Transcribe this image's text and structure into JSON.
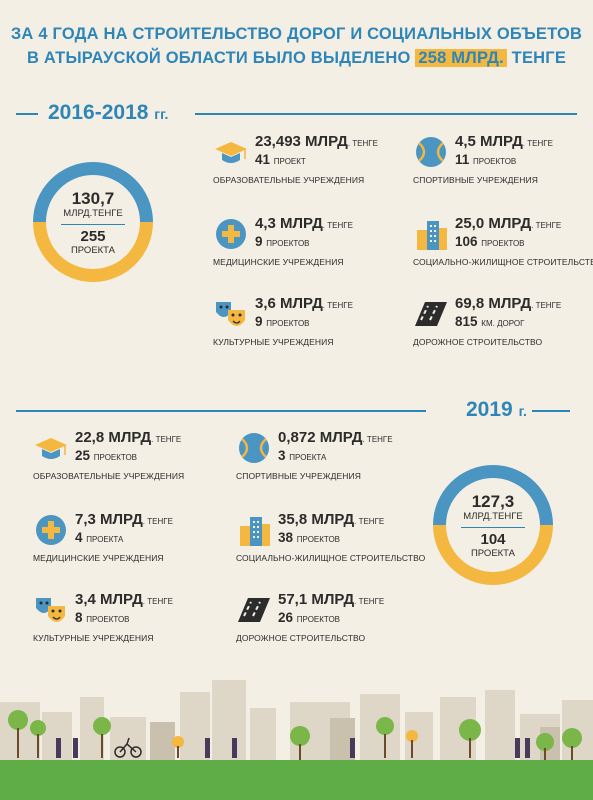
{
  "header": {
    "line1": "ЗА 4 ГОДА НА СТРОИТЕЛЬСТВО ДОРОГ И СОЦИАЛЬНЫХ ОБЪЕТОВ",
    "line2_prefix": "В АТЫРАУСКОЙ ОБЛАСТИ БЫЛО ВЫДЕЛЕНО",
    "line2_highlight": "258 МЛРД.",
    "line2_suffix": "ТЕНГЕ"
  },
  "period1": {
    "label": "2016-2018",
    "suffix": "гг.",
    "total_value": "130,7",
    "total_unit": "МЛРД.ТЕНГЕ",
    "total_count": "255",
    "total_count_label": "ПРОЕКТА",
    "items": [
      {
        "amount": "23,493 МЛРД",
        "unit": ". ТЕНГЕ",
        "count": "41",
        "count_unit": "ПРОЕКТ",
        "caption": "ОБРАЗОВАТЕЛЬНЫЕ УЧРЕЖДЕНИЯ",
        "icon": "graduation-cap-icon"
      },
      {
        "amount": "4,5 МЛРД",
        "unit": ". ТЕНГЕ",
        "count": "11",
        "count_unit": "ПРОЕКТОВ",
        "caption": "СПОРТИВНЫЕ УЧРЕЖДЕНИЯ",
        "icon": "tennis-ball-icon"
      },
      {
        "amount": "4,3 МЛРД",
        "unit": ". ТЕНГЕ",
        "count": "9",
        "count_unit": "ПРОЕКТОВ",
        "caption": "МЕДИЦИНСКИЕ УЧРЕЖДЕНИЯ",
        "icon": "medical-cross-icon"
      },
      {
        "amount": "25,0 МЛРД",
        "unit": ". ТЕНГЕ",
        "count": "106",
        "count_unit": "ПРОЕКТОВ",
        "caption": "СОЦИАЛЬНО-ЖИЛИЩНОЕ СТРОИТЕЛЬСТВО",
        "icon": "buildings-icon"
      },
      {
        "amount": "3,6 МЛРД",
        "unit": ". ТЕНГЕ",
        "count": "9",
        "count_unit": "ПРОЕКТОВ",
        "caption": "КУЛЬТУРНЫЕ УЧРЕЖДЕНИЯ",
        "icon": "theater-masks-icon"
      },
      {
        "amount": "69,8 МЛРД",
        "unit": ". ТЕНГЕ",
        "count": "815",
        "count_unit": "КМ. ДОРОГ",
        "caption": "ДОРОЖНОЕ СТРОИТЕЛЬСТВО",
        "icon": "road-icon"
      }
    ]
  },
  "period2": {
    "label": "2019",
    "suffix": "г.",
    "total_value": "127,3",
    "total_unit": "МЛРД.ТЕНГЕ",
    "total_count": "104",
    "total_count_label": "ПРОЕКТА",
    "items": [
      {
        "amount": "22,8 МЛРД",
        "unit": ". ТЕНГЕ",
        "count": "25",
        "count_unit": "ПРОЕКТОВ",
        "caption": "ОБРАЗОВАТЕЛЬНЫЕ УЧРЕЖДЕНИЯ",
        "icon": "graduation-cap-icon"
      },
      {
        "amount": "0,872 МЛРД",
        "unit": ". ТЕНГЕ",
        "count": "3",
        "count_unit": "ПРОЕКТА",
        "caption": "СПОРТИВНЫЕ УЧРЕЖДЕНИЯ",
        "icon": "tennis-ball-icon"
      },
      {
        "amount": "7,3 МЛРД",
        "unit": ". ТЕНГЕ",
        "count": "4",
        "count_unit": "ПРОЕКТА",
        "caption": "МЕДИЦИНСКИЕ УЧРЕЖДЕНИЯ",
        "icon": "medical-cross-icon"
      },
      {
        "amount": "35,8 МЛРД",
        "unit": ". ТЕНГЕ",
        "count": "38",
        "count_unit": "ПРОЕКТОВ",
        "caption": "СОЦИАЛЬНО-ЖИЛИЩНОЕ СТРОИТЕЛЬСТВО",
        "icon": "buildings-icon"
      },
      {
        "amount": "3,4  МЛРД",
        "unit": ". ТЕНГЕ",
        "count": "8",
        "count_unit": "ПРОЕКТОВ",
        "caption": "КУЛЬТУРНЫЕ УЧРЕЖДЕНИЯ",
        "icon": "theater-masks-icon"
      },
      {
        "amount": "57,1 МЛРД",
        "unit": ". ТЕНГЕ",
        "count": "26",
        "count_unit": "ПРОЕКТОВ",
        "caption": "ДОРОЖНОЕ СТРОИТЕЛЬСТВО",
        "icon": "road-icon"
      }
    ]
  },
  "colors": {
    "blue": "#4b95c2",
    "orange": "#f4b73f",
    "title": "#2e86b8",
    "background": "#f4efe4",
    "grass": "#5fad46"
  }
}
